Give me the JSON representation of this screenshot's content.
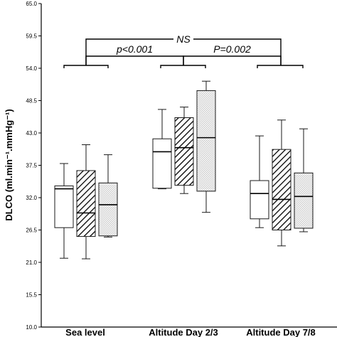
{
  "chart_data": {
    "type": "box",
    "ylabel": "DLCO (ml.min⁻¹.mmHg⁻¹)",
    "ylim": [
      10.0,
      65.0
    ],
    "y_ticks": [
      "10.0",
      "15.5",
      "21.0",
      "26.5",
      "32.0",
      "37.5",
      "43.0",
      "48.5",
      "54.0",
      "59.5",
      "65.0"
    ],
    "categories": [
      "Sea level",
      "Altitude Day 2/3",
      "Altitude Day 7/8"
    ],
    "box_fills": [
      "plain",
      "hatched",
      "dotted"
    ],
    "boxes": [
      [
        {
          "min": 21.7,
          "q1": 26.9,
          "median": 33.5,
          "q3": 34.0,
          "max": 37.8
        },
        {
          "min": 21.6,
          "q1": 25.4,
          "median": 29.4,
          "q3": 36.6,
          "max": 41.0
        },
        {
          "min": 25.3,
          "q1": 25.5,
          "median": 30.8,
          "q3": 34.5,
          "max": 39.3
        }
      ],
      [
        {
          "min": 33.5,
          "q1": 33.6,
          "median": 39.8,
          "q3": 42.0,
          "max": 47.0
        },
        {
          "min": 32.7,
          "q1": 34.1,
          "median": 40.5,
          "q3": 45.6,
          "max": 47.4
        },
        {
          "min": 29.5,
          "q1": 33.1,
          "median": 42.2,
          "q3": 50.2,
          "max": 51.8
        }
      ],
      [
        {
          "min": 26.9,
          "q1": 28.4,
          "median": 32.7,
          "q3": 34.9,
          "max": 42.5
        },
        {
          "min": 23.8,
          "q1": 26.5,
          "median": 31.7,
          "q3": 40.2,
          "max": 45.2
        },
        {
          "min": 26.2,
          "q1": 26.8,
          "median": 32.2,
          "q3": 36.2,
          "max": 43.7
        }
      ]
    ],
    "significance": [
      {
        "label": "NS",
        "from": 0,
        "to": 2
      },
      {
        "label": "p<0.001",
        "from": 0,
        "to": 1
      },
      {
        "label": "P=0.002",
        "from": 1,
        "to": 2
      }
    ],
    "grid": false,
    "legend": "none"
  }
}
